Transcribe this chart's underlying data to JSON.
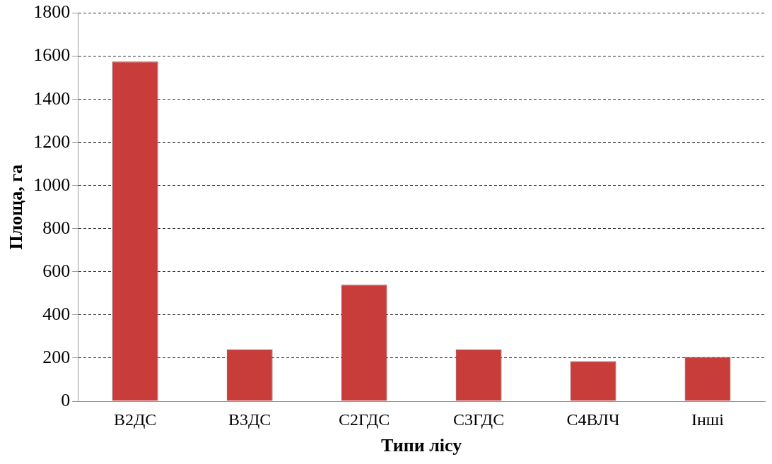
{
  "chart_data": {
    "type": "bar",
    "xlabel": "Типи лісу",
    "ylabel": "Площа, га",
    "categories": [
      "В2ДС",
      "В3ДС",
      "С2ГДС",
      "С3ГДС",
      "С4ВЛЧ",
      "Інші"
    ],
    "values": [
      1575,
      240,
      540,
      240,
      185,
      205
    ],
    "color": "#c83c3a",
    "ylim": [
      0,
      1800
    ],
    "yticks": [
      0,
      200,
      400,
      600,
      800,
      1000,
      1200,
      1400,
      1600,
      1800
    ],
    "grid": "y"
  }
}
